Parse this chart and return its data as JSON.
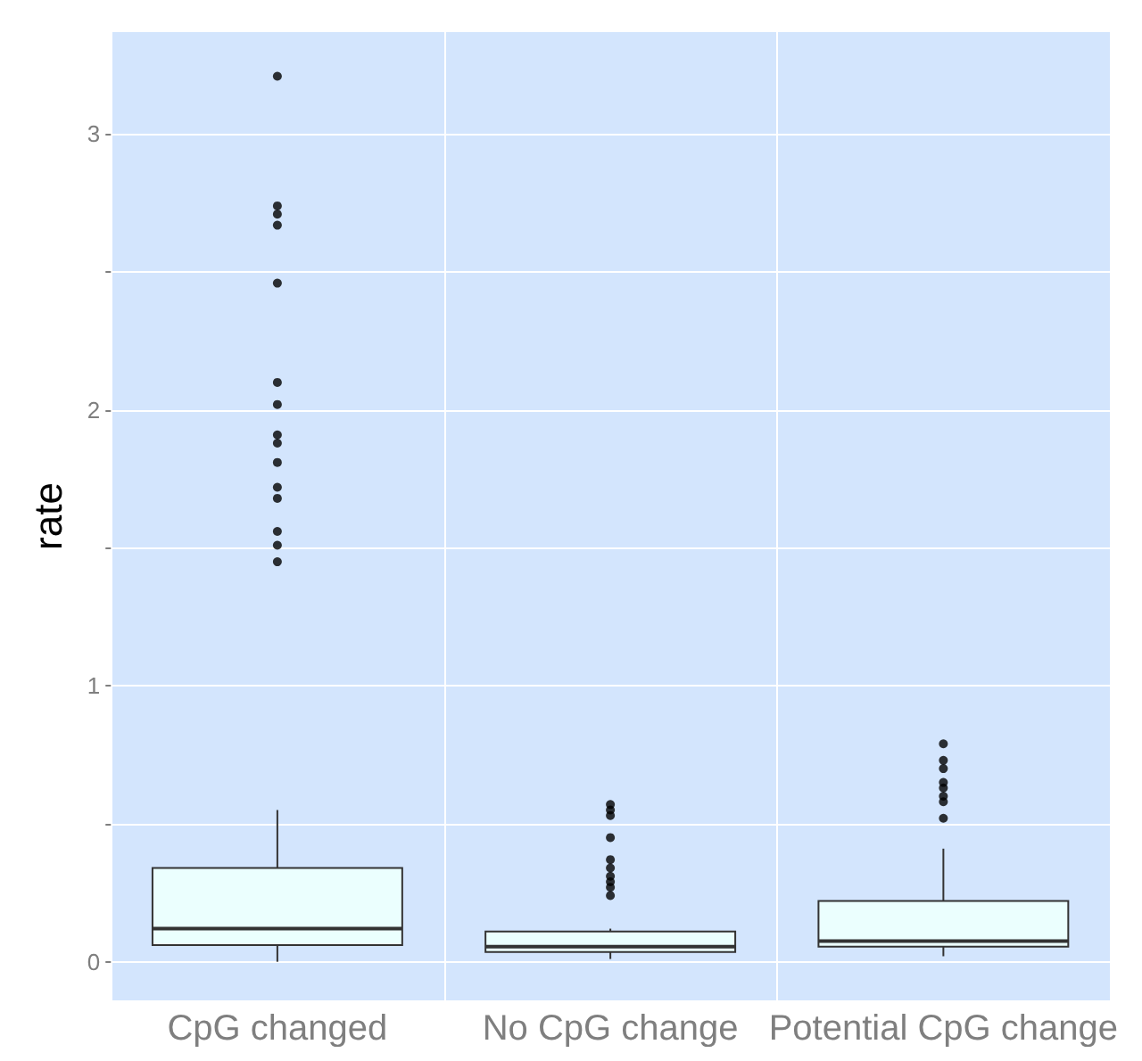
{
  "chart_data": {
    "type": "box",
    "ylabel": "rate",
    "categories": [
      "CpG changed",
      "No CpG change",
      "Potential CpG change"
    ],
    "boxes": [
      {
        "low": 0.0,
        "q1": 0.06,
        "median": 0.12,
        "q3": 0.34,
        "high": 0.55,
        "outliers": [
          3.21,
          2.74,
          2.71,
          2.67,
          2.46,
          2.1,
          2.02,
          1.91,
          1.88,
          1.81,
          1.72,
          1.68,
          1.56,
          1.51,
          1.45
        ]
      },
      {
        "low": 0.01,
        "q1": 0.035,
        "median": 0.055,
        "q3": 0.11,
        "high": 0.12,
        "outliers": [
          0.57,
          0.55,
          0.53,
          0.45,
          0.37,
          0.34,
          0.31,
          0.29,
          0.27,
          0.24
        ]
      },
      {
        "low": 0.02,
        "q1": 0.055,
        "median": 0.075,
        "q3": 0.22,
        "high": 0.41,
        "outliers": [
          0.79,
          0.73,
          0.7,
          0.65,
          0.63,
          0.6,
          0.58,
          0.52
        ]
      }
    ],
    "color": "#ebfffe",
    "ylim": [
      -0.14,
      3.37
    ],
    "yticks": [
      0,
      {
        "value": 0.5,
        "label": null
      },
      1,
      {
        "value": 1.5,
        "label": null
      },
      2,
      {
        "value": 2.5,
        "label": null
      },
      3
    ],
    "grid": true
  }
}
